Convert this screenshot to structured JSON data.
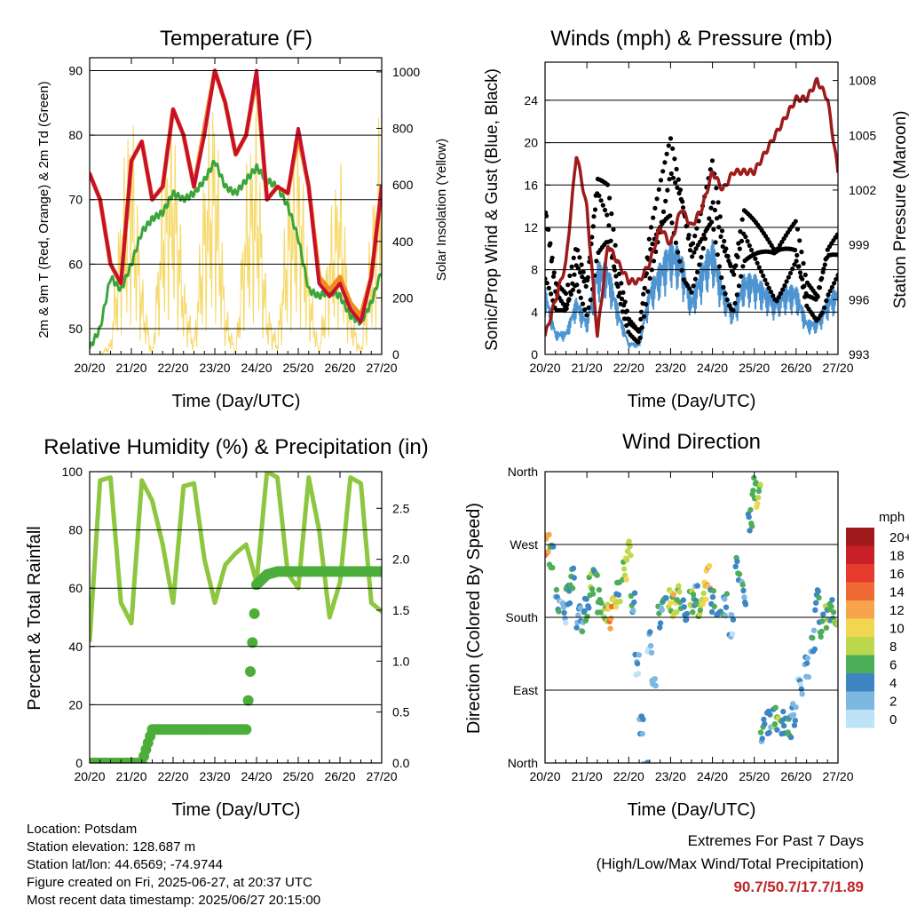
{
  "colors": {
    "temp2m": "#c8102e",
    "temp9m": "#f28b1e",
    "dewpoint": "#3aa53a",
    "solar": "#f5d55a",
    "gust": "#000000",
    "wind": "#4d94d0",
    "pressure": "#9e1b1b",
    "rh": "#8dc63f",
    "precip": "#4cad3a"
  },
  "panels": {
    "temperature": {
      "title": "Temperature (F)",
      "ylabel_left": "2m & 9m T (Red, Orange) & 2m Td (Green)",
      "ylabel_right": "Solar Insolation (Yellow)",
      "xlabel": "Time (Day/UTC)",
      "xticks": [
        "20/20",
        "21/20",
        "22/20",
        "23/20",
        "24/20",
        "25/20",
        "26/20",
        "27/20"
      ],
      "yticks_left": [
        "50",
        "60",
        "70",
        "80",
        "90"
      ],
      "yticks_right": [
        "0",
        "200",
        "400",
        "600",
        "800",
        "1000"
      ]
    },
    "winds": {
      "title": "Winds (mph) & Pressure (mb)",
      "ylabel_left": "Sonic/Prop Wind & Gust (Blue, Black)",
      "ylabel_right": "Station Pressure (Maroon)",
      "xlabel": "Time (Day/UTC)",
      "xticks": [
        "20/20",
        "21/20",
        "22/20",
        "23/20",
        "24/20",
        "25/20",
        "26/20",
        "27/20"
      ],
      "yticks_left": [
        "0",
        "4",
        "8",
        "12",
        "16",
        "20",
        "24"
      ],
      "yticks_right": [
        "993",
        "996",
        "999",
        "1002",
        "1005",
        "1008"
      ]
    },
    "humidity": {
      "title": "Relative Humidity (%) & Precipitation (in)",
      "ylabel_left": "Percent & Total Rainfall",
      "xlabel": "Time (Day/UTC)",
      "xticks": [
        "20/20",
        "21/20",
        "22/20",
        "23/20",
        "24/20",
        "25/20",
        "26/20",
        "27/20"
      ],
      "yticks_left": [
        "0",
        "20",
        "40",
        "60",
        "80",
        "100"
      ],
      "yticks_right": [
        "0.0",
        "0.5",
        "1.0",
        "1.5",
        "2.0",
        "2.5"
      ]
    },
    "direction": {
      "title": "Wind Direction",
      "ylabel_left": "Direction (Colored By Speed)",
      "xlabel": "Time (Day/UTC)",
      "xticks": [
        "20/20",
        "21/20",
        "22/20",
        "23/20",
        "24/20",
        "25/20",
        "26/20",
        "27/20"
      ],
      "yticks_left": [
        "North",
        "East",
        "South",
        "West",
        "North"
      ],
      "legend_title": "mph",
      "legend_labels": [
        "20+",
        "18",
        "16",
        "14",
        "12",
        "10",
        "8",
        "6",
        "4",
        "2",
        "0"
      ],
      "legend_colors": [
        "#a01a1e",
        "#c92028",
        "#e63a2e",
        "#f06a34",
        "#f7a44c",
        "#f2d651",
        "#bcd84c",
        "#4dae5a",
        "#3e86c3",
        "#7db8e2",
        "#bfe3f6"
      ]
    }
  },
  "info": {
    "location": "Location: Potsdam",
    "elevation": "Station elevation: 128.687 m",
    "latlon": "Station lat/lon: 44.6569; -74.9744",
    "created": "Figure created on Fri, 2025-06-27, at 20:37 UTC",
    "recent": "Most recent data timestamp: 2025/06/27 20:15:00"
  },
  "extremes": {
    "title": "Extremes For Past 7 Days",
    "subtitle": "(High/Low/Max Wind/Total Precipitation)",
    "values": "90.7/50.7/17.7/1.89"
  },
  "chart_data": [
    {
      "type": "line",
      "title": "Temperature (F)",
      "xlabel": "Time (Day/UTC)",
      "ylabel": "2m & 9m T (Red, Orange) & 2m Td (Green)",
      "ylabel_right": "Solar Insolation (Yellow)",
      "x": [
        0,
        0.25,
        0.5,
        0.75,
        1,
        1.25,
        1.5,
        1.75,
        2,
        2.25,
        2.5,
        2.75,
        3,
        3.25,
        3.5,
        3.75,
        4,
        4.25,
        4.5,
        4.75,
        5,
        5.25,
        5.5,
        5.75,
        6,
        6.25,
        6.5,
        6.75,
        7
      ],
      "xlim": [
        0,
        7
      ],
      "ylim": [
        46,
        92
      ],
      "ylim_right": [
        0,
        1050
      ],
      "series": [
        {
          "name": "2m T",
          "values": [
            74,
            70,
            60,
            57,
            76,
            79,
            70,
            72,
            84,
            80,
            72,
            80,
            90,
            85,
            77,
            80,
            90,
            70,
            72,
            71,
            81,
            72,
            57,
            55,
            57,
            53,
            51,
            58,
            72
          ]
        },
        {
          "name": "9m T",
          "values": [
            74,
            70,
            60,
            57,
            76,
            79,
            70,
            72,
            84,
            80,
            72,
            81,
            90,
            85,
            77,
            80,
            89,
            70,
            72,
            71,
            80,
            72,
            58,
            56,
            58,
            54,
            52,
            58,
            72
          ]
        },
        {
          "name": "2m Td",
          "values": [
            47,
            50,
            58,
            56,
            60,
            65,
            67,
            68,
            71,
            70,
            71,
            73,
            76,
            72,
            71,
            73,
            75,
            73,
            72,
            69,
            64,
            56,
            55,
            56,
            55,
            52,
            51,
            54,
            59
          ]
        },
        {
          "name": "Solar Insolation",
          "axis": "right",
          "values": [
            0,
            0,
            50,
            600,
            950,
            300,
            0,
            700,
            950,
            300,
            50,
            700,
            1000,
            200,
            10,
            700,
            900,
            200,
            50,
            650,
            850,
            350,
            0,
            500,
            750,
            200,
            10,
            500,
            1000
          ]
        }
      ]
    },
    {
      "type": "scatter",
      "title": "Winds (mph) & Pressure (mb)",
      "xlabel": "Time (Day/UTC)",
      "ylabel": "Sonic/Prop Wind & Gust (Blue, Black)",
      "ylabel_right": "Station Pressure (Maroon)",
      "x": [
        0,
        0.25,
        0.5,
        0.75,
        1,
        1.25,
        1.5,
        1.75,
        2,
        2.25,
        2.5,
        2.75,
        3,
        3.25,
        3.5,
        3.75,
        4,
        4.25,
        4.5,
        4.75,
        5,
        5.25,
        5.5,
        5.75,
        6,
        6.25,
        6.5,
        6.75,
        7
      ],
      "xlim": [
        0,
        7
      ],
      "ylim": [
        0,
        27.6
      ],
      "ylim_right": [
        993,
        1009
      ],
      "series": [
        {
          "name": "Wind",
          "values": [
            6,
            2,
            2,
            5,
            3,
            8,
            8,
            4,
            1,
            1,
            6,
            8,
            10,
            9,
            5,
            8,
            10,
            6,
            4,
            7,
            7,
            6,
            5,
            6,
            6,
            3,
            3,
            5,
            6
          ]
        },
        {
          "name": "Gust",
          "values": [
            13,
            6,
            5,
            9,
            6,
            15,
            14,
            7,
            3,
            2,
            10,
            14,
            18,
            14,
            9,
            12,
            16,
            10,
            7,
            12,
            11,
            10,
            9,
            10,
            11,
            6,
            5,
            9,
            10
          ]
        },
        {
          "name": "Station Pressure",
          "axis": "right",
          "values": [
            994,
            996,
            998,
            1004,
            1001,
            994,
            999,
            998,
            997,
            997,
            998,
            1000,
            999,
            1001,
            1000,
            1001,
            1003,
            1002,
            1003,
            1003,
            1003,
            1004,
            1005,
            1006,
            1007,
            1007,
            1008,
            1007,
            1003
          ]
        }
      ]
    },
    {
      "type": "line",
      "title": "Relative Humidity (%) & Precipitation (in)",
      "xlabel": "Time (Day/UTC)",
      "ylabel": "Percent & Total Rainfall",
      "x": [
        0,
        0.25,
        0.5,
        0.75,
        1,
        1.25,
        1.5,
        1.75,
        2,
        2.25,
        2.5,
        2.75,
        3,
        3.25,
        3.5,
        3.75,
        4,
        4.25,
        4.5,
        4.75,
        5,
        5.25,
        5.5,
        5.75,
        6,
        6.25,
        6.5,
        6.75,
        7
      ],
      "xlim": [
        0,
        7
      ],
      "ylim": [
        0,
        100
      ],
      "ylim_right": [
        0,
        2.86
      ],
      "series": [
        {
          "name": "Relative Humidity",
          "values": [
            42,
            97,
            98,
            55,
            48,
            97,
            90,
            75,
            55,
            95,
            96,
            70,
            55,
            68,
            72,
            75,
            62,
            100,
            98,
            65,
            60,
            98,
            80,
            50,
            62,
            98,
            96,
            55,
            52
          ]
        },
        {
          "name": "Total Precipitation",
          "axis": "right",
          "values": [
            0,
            0,
            0,
            0,
            0,
            0,
            0.33,
            0.33,
            0.33,
            0.33,
            0.33,
            0.33,
            0.33,
            0.33,
            0.33,
            0.33,
            1.75,
            1.85,
            1.88,
            1.88,
            1.88,
            1.88,
            1.88,
            1.88,
            1.88,
            1.88,
            1.88,
            1.88,
            1.88
          ]
        }
      ]
    },
    {
      "type": "scatter",
      "title": "Wind Direction",
      "xlabel": "Time (Day/UTC)",
      "ylabel": "Direction (Colored By Speed)",
      "xlim": [
        0,
        7
      ],
      "ylim": [
        0,
        360
      ],
      "yticks": [
        "North",
        "East",
        "South",
        "West",
        "North"
      ],
      "points": [
        [
          0.05,
          270,
          13
        ],
        [
          0.15,
          255,
          6
        ],
        [
          0.3,
          200,
          4
        ],
        [
          0.45,
          185,
          2
        ],
        [
          0.55,
          210,
          6
        ],
        [
          0.65,
          230,
          5
        ],
        [
          0.8,
          180,
          3
        ],
        [
          0.9,
          175,
          4
        ],
        [
          1.0,
          190,
          5
        ],
        [
          1.1,
          220,
          7
        ],
        [
          1.2,
          245,
          6
        ],
        [
          1.3,
          200,
          5
        ],
        [
          1.45,
          185,
          7
        ],
        [
          1.55,
          180,
          12
        ],
        [
          1.65,
          190,
          9
        ],
        [
          1.75,
          210,
          6
        ],
        [
          1.9,
          240,
          8
        ],
        [
          2.0,
          260,
          7
        ],
        [
          2.1,
          200,
          4
        ],
        [
          2.2,
          120,
          2
        ],
        [
          2.3,
          50,
          3
        ],
        [
          2.4,
          10,
          4
        ],
        [
          2.5,
          150,
          2
        ],
        [
          2.6,
          100,
          3
        ],
        [
          2.75,
          180,
          4
        ],
        [
          2.85,
          190,
          5
        ],
        [
          3.0,
          200,
          8
        ],
        [
          3.1,
          195,
          10
        ],
        [
          3.2,
          205,
          7
        ],
        [
          3.35,
          190,
          5
        ],
        [
          3.5,
          200,
          6
        ],
        [
          3.6,
          205,
          4
        ],
        [
          3.7,
          195,
          7
        ],
        [
          3.8,
          210,
          9
        ],
        [
          3.9,
          230,
          11
        ],
        [
          4.0,
          200,
          5
        ],
        [
          4.15,
          180,
          3
        ],
        [
          4.3,
          195,
          4
        ],
        [
          4.45,
          170,
          2
        ],
        [
          4.6,
          240,
          5
        ],
        [
          4.75,
          210,
          4
        ],
        [
          4.9,
          300,
          5
        ],
        [
          5.0,
          340,
          6
        ],
        [
          5.1,
          330,
          8
        ],
        [
          5.2,
          40,
          4
        ],
        [
          5.35,
          50,
          4
        ],
        [
          5.5,
          55,
          6
        ],
        [
          5.6,
          60,
          8
        ],
        [
          5.7,
          50,
          5
        ],
        [
          5.85,
          45,
          4
        ],
        [
          5.95,
          60,
          3
        ],
        [
          6.1,
          90,
          2
        ],
        [
          6.25,
          120,
          3
        ],
        [
          6.4,
          150,
          4
        ],
        [
          6.5,
          200,
          5
        ],
        [
          6.6,
          170,
          4
        ],
        [
          6.75,
          180,
          6
        ],
        [
          6.85,
          190,
          5
        ],
        [
          6.95,
          185,
          7
        ]
      ]
    }
  ]
}
